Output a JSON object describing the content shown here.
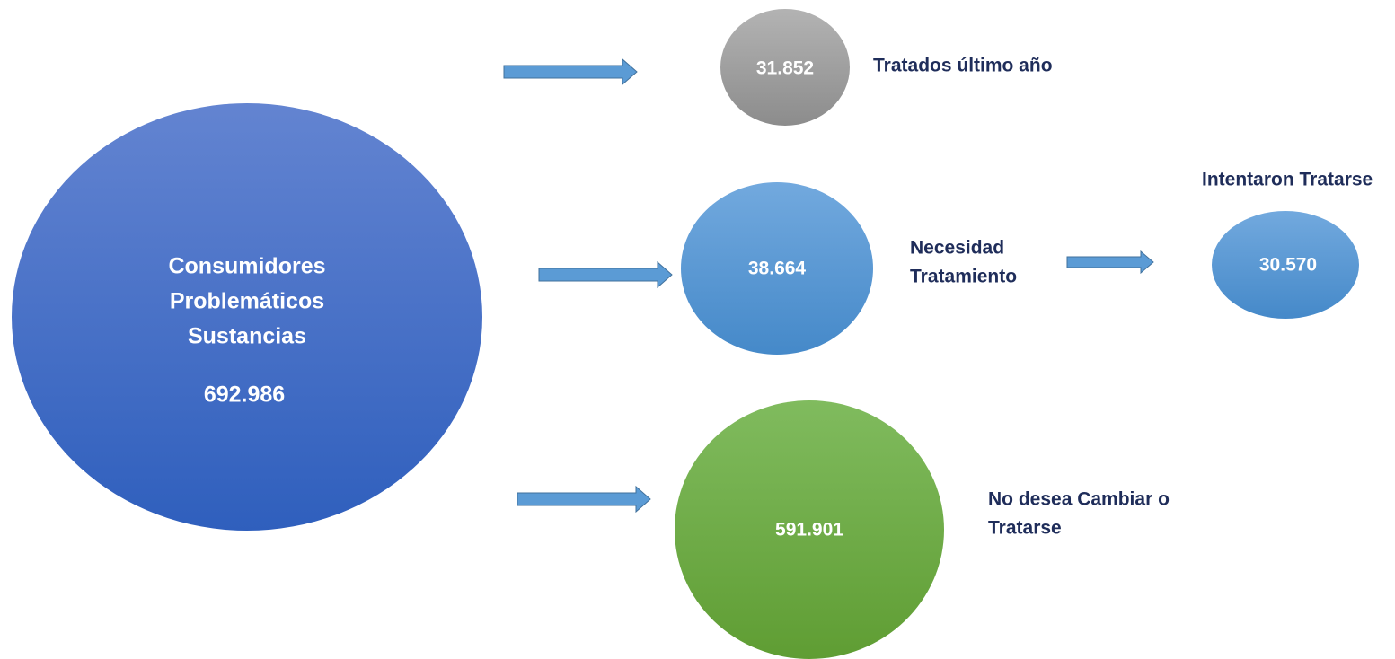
{
  "nodes": [
    {
      "label": [
        "Consumidores",
        "Problemáticos",
        "Sustancias"
      ],
      "value": "692.986"
    },
    {
      "value": "31.852",
      "caption": [
        "Tratados último año"
      ]
    },
    {
      "value": "38.664",
      "caption": [
        "Necesidad",
        "Tratamiento"
      ]
    },
    {
      "value": "30.570",
      "caption": [
        "Intentaron Tratarse"
      ]
    },
    {
      "value": "591.901",
      "caption": [
        "No desea Cambiar o",
        "Tratarse"
      ]
    }
  ]
}
